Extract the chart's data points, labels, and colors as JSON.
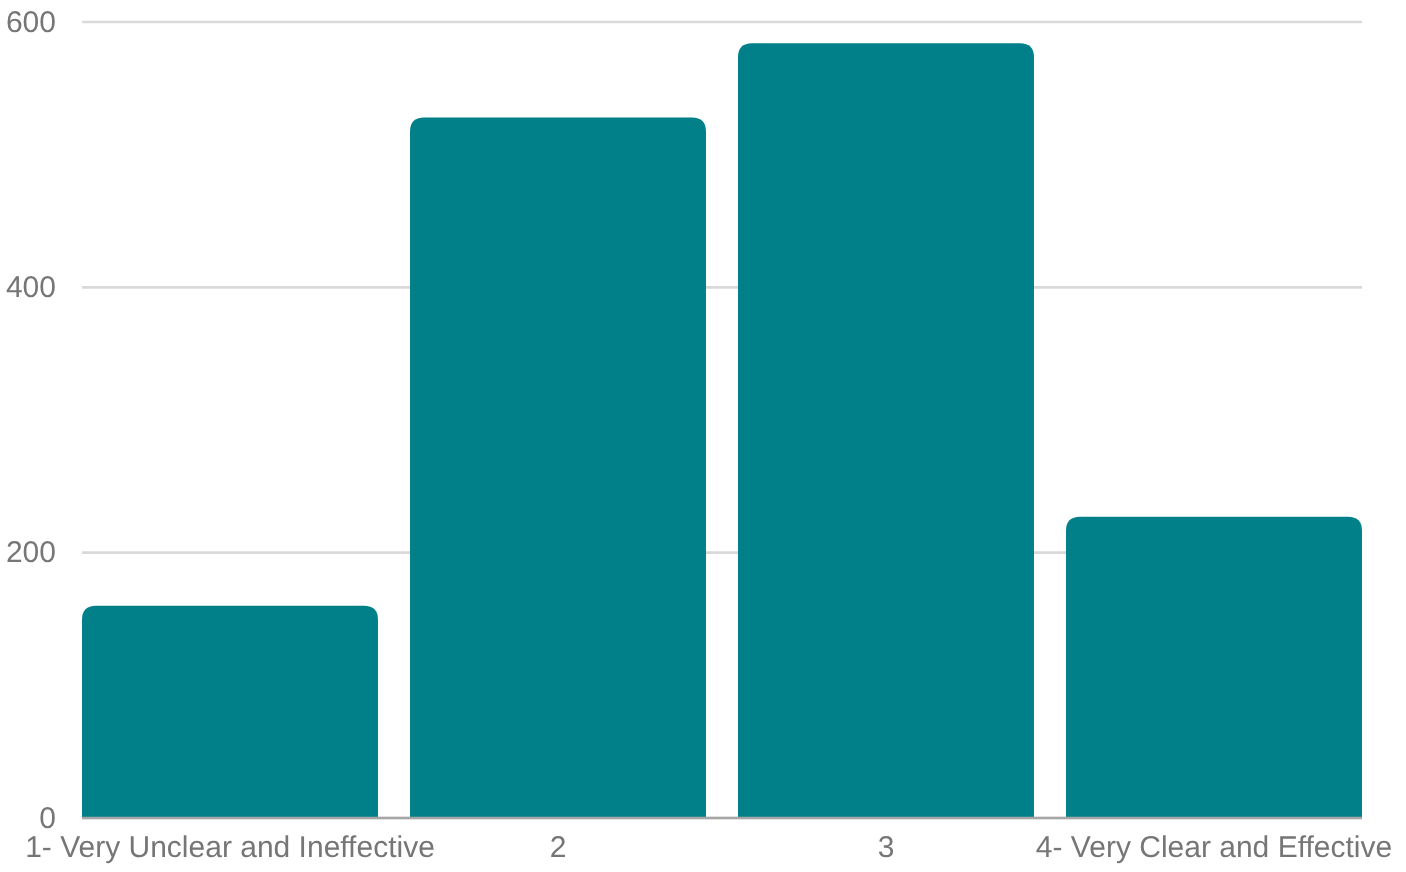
{
  "chart_data": {
    "type": "bar",
    "categories": [
      "1- Very Unclear and Ineffective",
      "2",
      "3",
      "4- Very Clear and Effective"
    ],
    "values": [
      160,
      528,
      584,
      227
    ],
    "color": "#01808a",
    "ylim": [
      0,
      600
    ],
    "yticks": [
      0,
      200,
      400,
      600
    ],
    "grid": "y"
  }
}
